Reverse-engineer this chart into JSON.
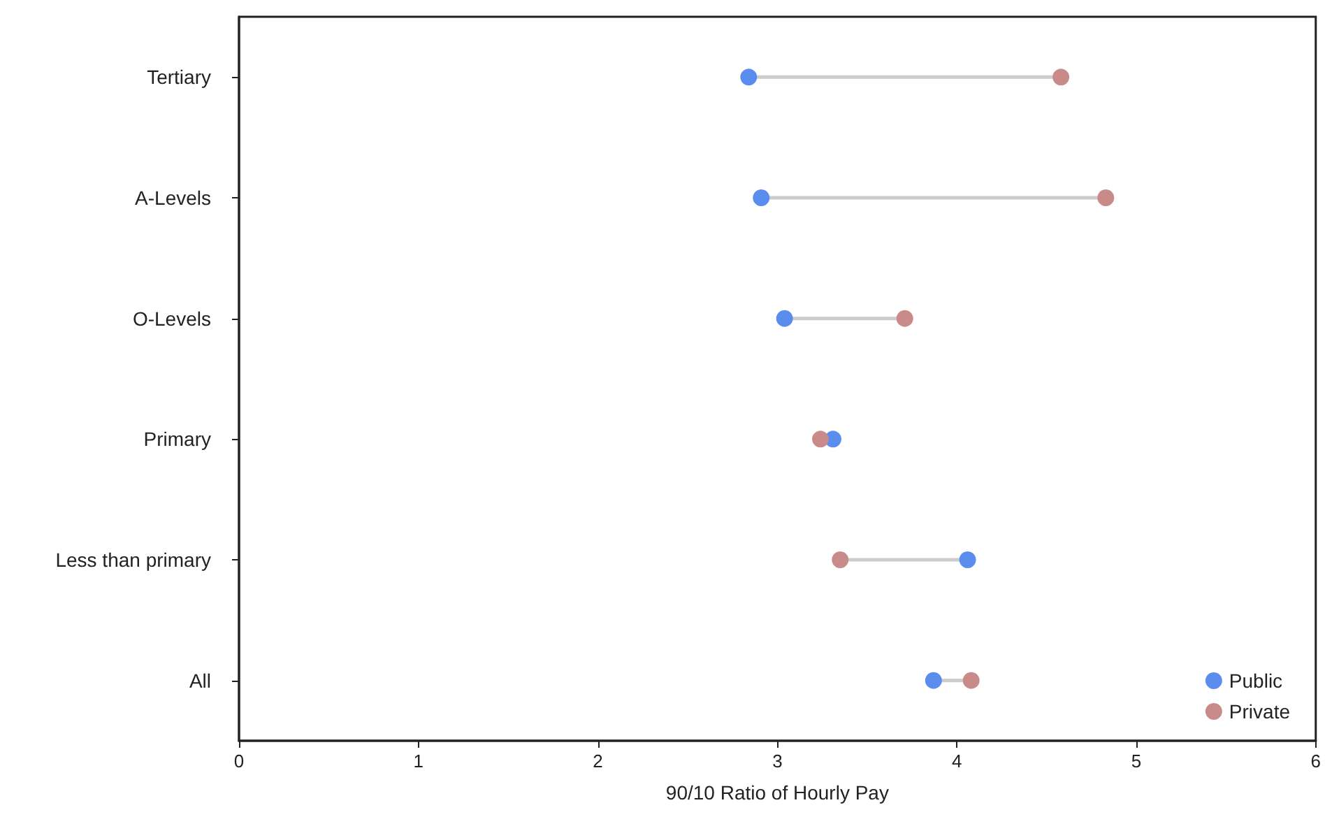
{
  "chart_data": {
    "type": "scatter",
    "orientation": "horizontal",
    "categories": [
      "Tertiary",
      "A-Levels",
      "O-Levels",
      "Primary",
      "Less than primary",
      "All"
    ],
    "xlabel": "90/10 Ratio of Hourly Pay",
    "xlim": [
      0,
      6
    ],
    "xticks": [
      0,
      1,
      2,
      3,
      4,
      5,
      6
    ],
    "grid": false,
    "legend": "bottom right",
    "marker": "circle",
    "series": [
      {
        "name": "Public",
        "color": "#5b8def",
        "values": [
          2.84,
          2.91,
          3.04,
          3.31,
          4.06,
          3.87
        ]
      },
      {
        "name": "Private",
        "color": "#c98a8a",
        "values": [
          4.58,
          4.83,
          3.71,
          3.24,
          3.35,
          4.08
        ]
      }
    ]
  }
}
